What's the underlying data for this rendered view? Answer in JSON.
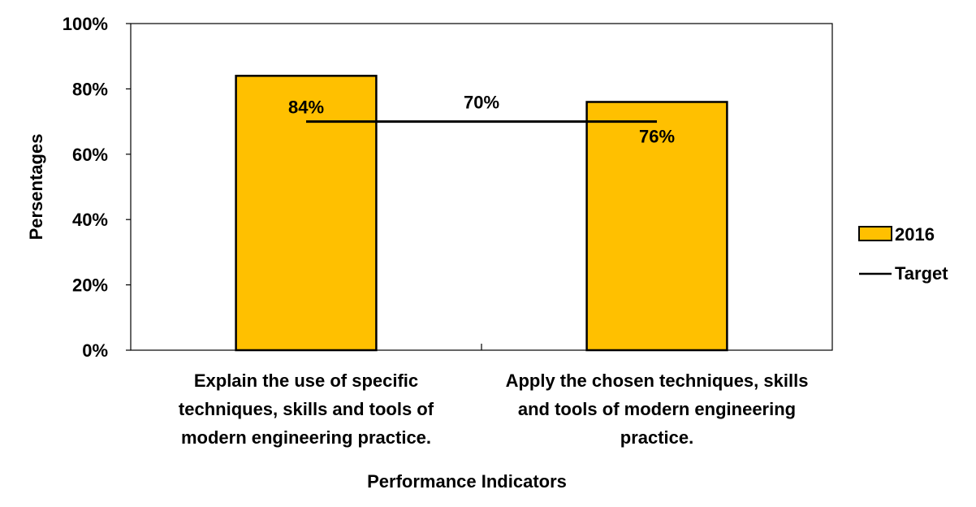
{
  "chart_data": {
    "type": "bar",
    "categories": [
      [
        "Explain the use of specific",
        "techniques, skills and tools of",
        "modern engineering practice."
      ],
      [
        "Apply the chosen techniques, skills",
        "and tools of modern engineering",
        "practice."
      ]
    ],
    "series": [
      {
        "name": "2016",
        "type": "bar",
        "values": [
          84,
          76
        ],
        "value_labels": [
          "84%",
          "76%"
        ],
        "color": "#FFC000"
      }
    ],
    "target": {
      "name": "Target",
      "type": "line",
      "value": 70,
      "value_label": "70%",
      "color": "#000000"
    },
    "xlabel": "Performance Indicators",
    "ylabel": "Persentages",
    "ylim": [
      0,
      100
    ],
    "yticks": [
      "0%",
      "20%",
      "40%",
      "60%",
      "80%",
      "100%"
    ],
    "grid": false,
    "legend": "right"
  }
}
